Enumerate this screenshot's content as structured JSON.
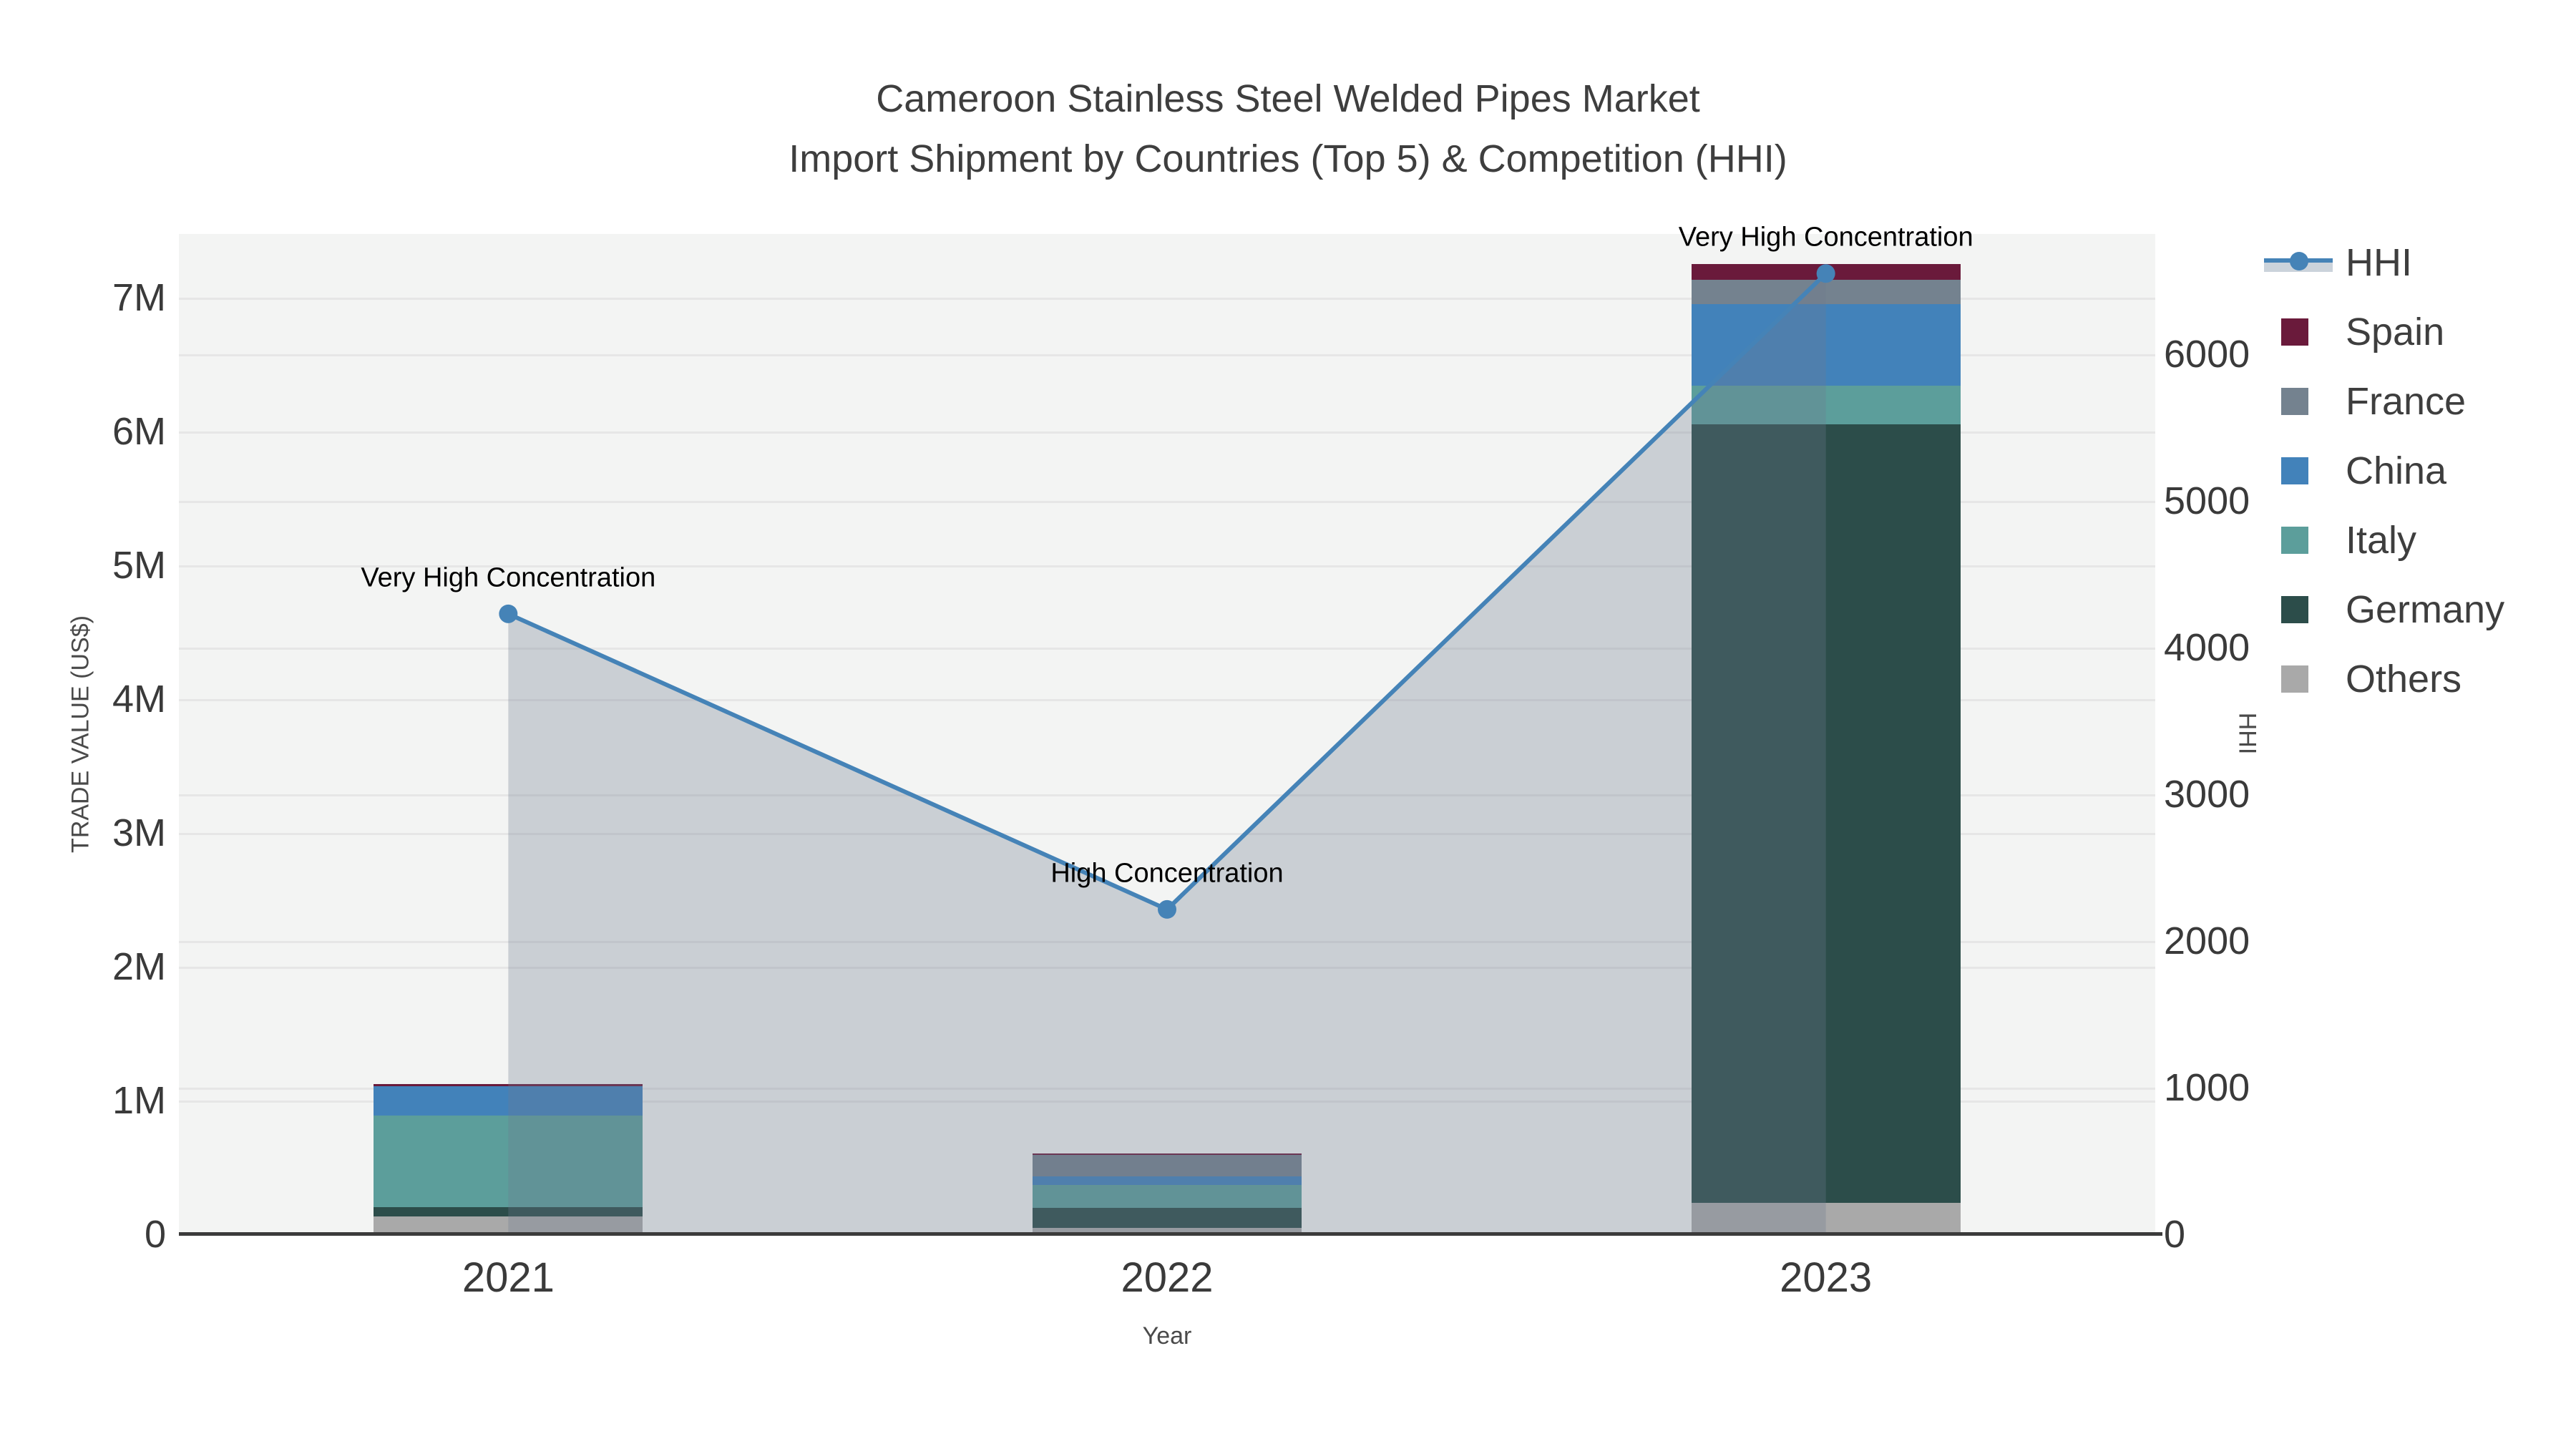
{
  "title": {
    "line1": "Cameroon Stainless Steel Welded Pipes Market",
    "line2": "Import Shipment by Countries (Top 5) & Competition (HHI)"
  },
  "axes": {
    "x": {
      "title": "Year",
      "categories": [
        "2021",
        "2022",
        "2023"
      ]
    },
    "y_left": {
      "title": "TRADE VALUE (US$)",
      "ticks": [
        "0",
        "1M",
        "2M",
        "3M",
        "4M",
        "5M",
        "6M",
        "7M"
      ]
    },
    "y_right": {
      "title": "HHI",
      "ticks": [
        "0",
        "1000",
        "2000",
        "3000",
        "4000",
        "5000",
        "6000"
      ]
    }
  },
  "chart_data": {
    "type": "bar",
    "subtype": "stacked-bar-with-line",
    "unit_bars": "US$ millions",
    "unit_line": "HHI index points",
    "categories": [
      "2021",
      "2022",
      "2023"
    ],
    "series": [
      {
        "name": "Others",
        "type": "bar",
        "color": "#A9A9A9",
        "values": [
          0.125,
          0.04,
          0.225
        ]
      },
      {
        "name": "Germany",
        "type": "bar",
        "color": "#2C4D4A",
        "values": [
          0.065,
          0.145,
          5.82
        ]
      },
      {
        "name": "Italy",
        "type": "bar",
        "color": "#5C9E9B",
        "values": [
          0.685,
          0.175,
          0.285
        ]
      },
      {
        "name": "China",
        "type": "bar",
        "color": "#4282BA",
        "values": [
          0.22,
          0.065,
          0.61
        ]
      },
      {
        "name": "France",
        "type": "bar",
        "color": "#74828F",
        "values": [
          0.0,
          0.16,
          0.185
        ]
      },
      {
        "name": "Spain",
        "type": "bar",
        "color": "#6A1A3B",
        "values": [
          0.015,
          0.01,
          0.115
        ]
      }
    ],
    "bar_totals": [
      1.11,
      0.6,
      7.24
    ],
    "line_series": {
      "name": "HHI",
      "type": "line",
      "color": "#4583B7",
      "fill": "rgba(110,124,144,0.30)",
      "values": [
        4230,
        2215,
        6550
      ]
    },
    "annotations": [
      {
        "category": "2021",
        "text": "Very High Concentration"
      },
      {
        "category": "2022",
        "text": "High Concentration"
      },
      {
        "category": "2023",
        "text": "Very High Concentration"
      }
    ],
    "ylim_left": [
      0,
      7480000
    ],
    "ylim_right": [
      0,
      6820
    ],
    "grid": true,
    "legend_position": "right"
  },
  "legend": {
    "items": [
      {
        "label": "HHI",
        "kind": "line",
        "color": "#4583B7"
      },
      {
        "label": "Spain",
        "kind": "swatch",
        "color": "#6A1A3B"
      },
      {
        "label": "France",
        "kind": "swatch",
        "color": "#74828F"
      },
      {
        "label": "China",
        "kind": "swatch",
        "color": "#4282BA"
      },
      {
        "label": "Italy",
        "kind": "swatch",
        "color": "#5C9E9B"
      },
      {
        "label": "Germany",
        "kind": "swatch",
        "color": "#2C4D4A"
      },
      {
        "label": "Others",
        "kind": "swatch",
        "color": "#A9A9A9"
      }
    ]
  }
}
